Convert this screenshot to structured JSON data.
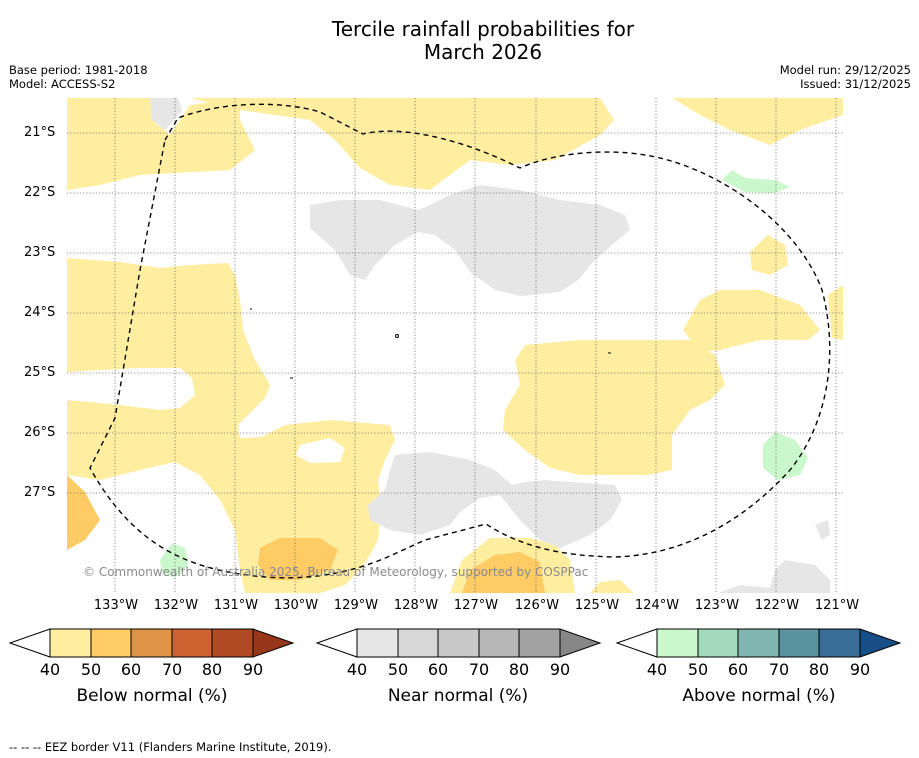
{
  "title_line1": "Tercile rainfall probabilities for",
  "title_line2": "March 2026",
  "meta_left": {
    "base_period": "Base period: 1981-2018",
    "model": "Model: ACCESS-S2"
  },
  "meta_right": {
    "model_run": "Model run: 29/12/2025",
    "issued": "Issued: 31/12/2025"
  },
  "lat_labels": [
    "21°S",
    "22°S",
    "23°S",
    "24°S",
    "25°S",
    "26°S",
    "27°S"
  ],
  "lon_labels": [
    "133°W",
    "132°W",
    "131°W",
    "130°W",
    "129°W",
    "128°W",
    "127°W",
    "126°W",
    "125°W",
    "124°W",
    "123°W",
    "122°W",
    "121°W"
  ],
  "copyright": "© Commonwealth of Australia 2025, Bureau of Meteorology, supported by COSPPac",
  "colorbars": [
    {
      "label": "Below normal (%)",
      "ticks": [
        "40",
        "50",
        "60",
        "70",
        "80",
        "90"
      ],
      "colors": [
        "#ffeda0",
        "#fecb64",
        "#e09448",
        "#cc6230",
        "#b04a24",
        "#96361a"
      ]
    },
    {
      "label": "Near normal (%)",
      "ticks": [
        "40",
        "50",
        "60",
        "70",
        "80",
        "90"
      ],
      "colors": [
        "#e6e6e6",
        "#d7d7d7",
        "#c8c8c8",
        "#b7b7b7",
        "#a2a2a2",
        "#878787"
      ]
    },
    {
      "label": "Above normal (%)",
      "ticks": [
        "40",
        "50",
        "60",
        "70",
        "80",
        "90"
      ],
      "colors": [
        "#cbf7cc",
        "#a3d9bd",
        "#80b5b1",
        "#5a929e",
        "#386d98",
        "#184e86"
      ]
    }
  ],
  "footer": "--  --  -- EEZ border V11 (Flanders Marine Institute, 2019)."
}
